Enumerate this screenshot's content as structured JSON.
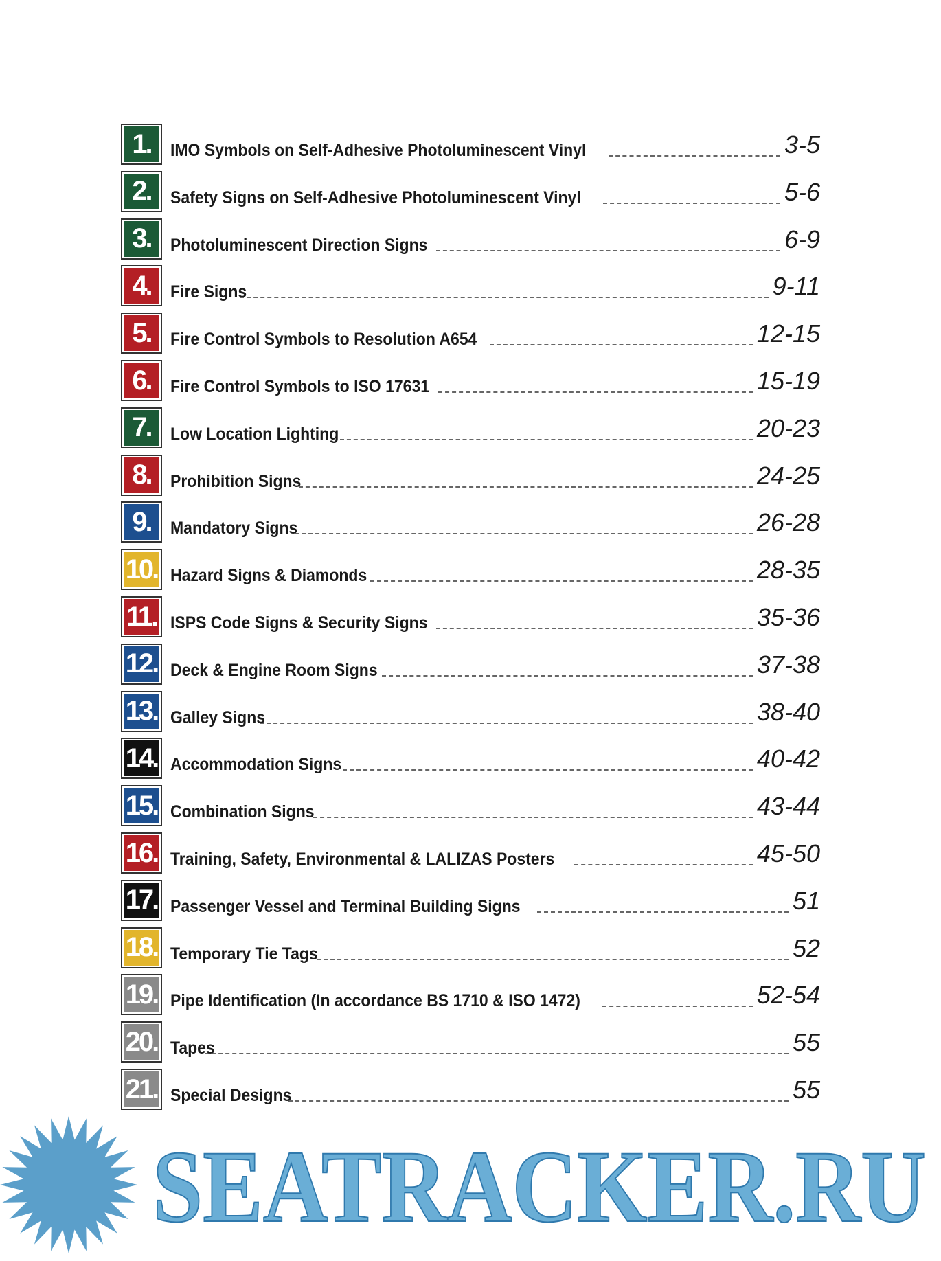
{
  "entries": [
    {
      "number": "1.",
      "title": "IMO Symbols on Self-Adhesive Photoluminescent Vinyl",
      "pages": "3-5",
      "color": "#1b5a36"
    },
    {
      "number": "2.",
      "title": "Safety Signs on Self-Adhesive Photoluminescent Vinyl",
      "pages": "5-6",
      "color": "#1b5a36"
    },
    {
      "number": "3.",
      "title": "Photoluminescent Direction Signs",
      "pages": "6-9",
      "color": "#1b5a36"
    },
    {
      "number": "4.",
      "title": "Fire Signs",
      "pages": "9-11",
      "color": "#b41f25"
    },
    {
      "number": "5.",
      "title": "Fire Control Symbols to Resolution A654",
      "pages": "12-15",
      "color": "#b41f25"
    },
    {
      "number": "6.",
      "title": "Fire Control Symbols to ISO 17631",
      "pages": "15-19",
      "color": "#b41f25"
    },
    {
      "number": "7.",
      "title": "Low Location Lighting",
      "pages": "20-23",
      "color": "#1b5a36"
    },
    {
      "number": "8.",
      "title": "Prohibition Signs",
      "pages": "24-25",
      "color": "#b41f25"
    },
    {
      "number": "9.",
      "title": "Mandatory Signs",
      "pages": "26-28",
      "color": "#1d4f8f"
    },
    {
      "number": "10.",
      "title": "Hazard Signs & Diamonds",
      "pages": "28-35",
      "color": "#e2b52c"
    },
    {
      "number": "11.",
      "title": "ISPS Code Signs & Security Signs",
      "pages": "35-36",
      "color": "#b41f25"
    },
    {
      "number": "12.",
      "title": "Deck & Engine Room Signs",
      "pages": "37-38",
      "color": "#1d4f8f"
    },
    {
      "number": "13.",
      "title": "Galley Signs",
      "pages": "38-40",
      "color": "#1d4f8f"
    },
    {
      "number": "14.",
      "title": "Accommodation Signs",
      "pages": "40-42",
      "color": "#111111"
    },
    {
      "number": "15.",
      "title": "Combination Signs",
      "pages": "43-44",
      "color": "#1d4f8f"
    },
    {
      "number": "16.",
      "title": "Training, Safety, Environmental & LALIZAS Posters",
      "pages": "45-50",
      "color": "#b41f25"
    },
    {
      "number": "17.",
      "title": "Passenger Vessel and Terminal Building Signs",
      "pages": "51",
      "color": "#111111"
    },
    {
      "number": "18.",
      "title": "Temporary Tie Tags",
      "pages": "52",
      "color": "#e2b52c"
    },
    {
      "number": "19.",
      "title": "Pipe Identification (In accordance BS 1710 & ISO 1472)",
      "pages": "52-54",
      "color": "#8a8a8a"
    },
    {
      "number": "20.",
      "title": "Tapes",
      "pages": "55",
      "color": "#8a8a8a"
    },
    {
      "number": "21.",
      "title": "Special Designs",
      "pages": "55",
      "color": "#8a8a8a"
    }
  ],
  "footer": {
    "watermark": "SEATRACKER.RU"
  }
}
